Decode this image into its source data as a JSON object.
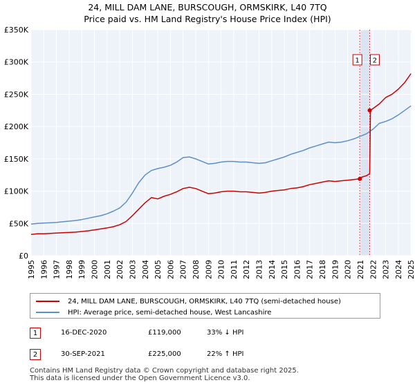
{
  "chart_data": {
    "type": "line",
    "title": "24, MILL DAM LANE, BURSCOUGH, ORMSKIRK, L40 7TQ",
    "subtitle": "Price paid vs. HM Land Registry's House Price Index (HPI)",
    "y_ticks": [
      {
        "value": 0,
        "label": "£0"
      },
      {
        "value": 50000,
        "label": "£50K"
      },
      {
        "value": 100000,
        "label": "£100K"
      },
      {
        "value": 150000,
        "label": "£150K"
      },
      {
        "value": 200000,
        "label": "£200K"
      },
      {
        "value": 250000,
        "label": "£250K"
      },
      {
        "value": 300000,
        "label": "£300K"
      },
      {
        "value": 350000,
        "label": "£350K"
      }
    ],
    "x_ticks": [
      "1995",
      "1996",
      "1997",
      "1998",
      "1999",
      "2000",
      "2001",
      "2002",
      "2003",
      "2004",
      "2005",
      "2006",
      "2007",
      "2008",
      "2009",
      "2010",
      "2011",
      "2012",
      "2013",
      "2014",
      "2015",
      "2016",
      "2017",
      "2018",
      "2019",
      "2020",
      "2021",
      "2022",
      "2023",
      "2024",
      "2025"
    ],
    "xlim": [
      1995,
      2025.1
    ],
    "ylim": [
      0,
      350000
    ],
    "grid": true,
    "series": [
      {
        "name": "24, MILL DAM LANE, BURSCOUGH, ORMSKIRK, L40 7TQ (semi-detached house)",
        "color": "#cc0000",
        "x": [
          1995.0,
          1995.5,
          1996.0,
          1996.5,
          1997.0,
          1997.5,
          1998.0,
          1998.5,
          1999.0,
          1999.5,
          2000.0,
          2000.5,
          2001.0,
          2001.5,
          2002.0,
          2002.5,
          2003.0,
          2003.5,
          2004.0,
          2004.5,
          2005.0,
          2005.5,
          2006.0,
          2006.5,
          2007.0,
          2007.5,
          2008.0,
          2008.5,
          2009.0,
          2009.5,
          2010.0,
          2010.5,
          2011.0,
          2011.5,
          2012.0,
          2012.5,
          2013.0,
          2013.5,
          2014.0,
          2014.5,
          2015.0,
          2015.5,
          2016.0,
          2016.5,
          2017.0,
          2017.5,
          2018.0,
          2018.5,
          2019.0,
          2019.5,
          2020.0,
          2020.5,
          2020.96,
          2021.0,
          2021.5,
          2021.74,
          2021.8,
          2022.0,
          2022.5,
          2023.0,
          2023.5,
          2024.0,
          2024.5,
          2025.0
        ],
        "values": [
          33000,
          34000,
          34000,
          34500,
          35000,
          35500,
          36000,
          36500,
          37500,
          38500,
          40000,
          41500,
          43000,
          45000,
          48000,
          53000,
          62000,
          72000,
          82000,
          90000,
          88000,
          92000,
          95000,
          99000,
          104000,
          106000,
          104000,
          100000,
          96000,
          97000,
          99000,
          100000,
          100000,
          99000,
          99000,
          98000,
          97000,
          98000,
          100000,
          101000,
          102000,
          104000,
          105000,
          107000,
          110000,
          112000,
          114000,
          116000,
          115000,
          116000,
          117000,
          118000,
          119000,
          121000,
          124000,
          127000,
          225000,
          228000,
          235000,
          245000,
          250000,
          258000,
          268000,
          282000
        ]
      },
      {
        "name": "HPI: Average price, semi-detached house, West Lancashire",
        "color": "#5b8fc9",
        "x": [
          1995.0,
          1995.5,
          1996.0,
          1996.5,
          1997.0,
          1997.5,
          1998.0,
          1998.5,
          1999.0,
          1999.5,
          2000.0,
          2000.5,
          2001.0,
          2001.5,
          2002.0,
          2002.5,
          2003.0,
          2003.5,
          2004.0,
          2004.5,
          2005.0,
          2005.5,
          2006.0,
          2006.5,
          2007.0,
          2007.5,
          2008.0,
          2008.5,
          2009.0,
          2009.5,
          2010.0,
          2010.5,
          2011.0,
          2011.5,
          2012.0,
          2012.5,
          2013.0,
          2013.5,
          2014.0,
          2014.5,
          2015.0,
          2015.5,
          2016.0,
          2016.5,
          2017.0,
          2017.5,
          2018.0,
          2018.5,
          2019.0,
          2019.5,
          2020.0,
          2020.5,
          2021.0,
          2021.5,
          2022.0,
          2022.5,
          2023.0,
          2023.5,
          2024.0,
          2024.5,
          2025.0
        ],
        "values": [
          49000,
          50000,
          50500,
          51000,
          51500,
          52500,
          53500,
          54500,
          56000,
          58000,
          60000,
          62000,
          65000,
          69000,
          74000,
          83000,
          97000,
          113000,
          125000,
          132000,
          135000,
          137000,
          140000,
          145000,
          152000,
          153000,
          150000,
          146000,
          142000,
          143000,
          145000,
          146000,
          146000,
          145000,
          145000,
          144000,
          143000,
          144000,
          147000,
          150000,
          153000,
          157000,
          160000,
          163000,
          167000,
          170000,
          173000,
          176000,
          175000,
          176000,
          178000,
          181000,
          185000,
          189000,
          196000,
          205000,
          208000,
          212000,
          218000,
          225000,
          232000
        ]
      }
    ],
    "annotations": [
      {
        "label": "1",
        "x": 2020.96
      },
      {
        "label": "2",
        "x": 2021.74
      }
    ]
  },
  "legend": {
    "property_label": "24, MILL DAM LANE, BURSCOUGH, ORMSKIRK, L40 7TQ (semi-detached house)",
    "hpi_label": "HPI: Average price, semi-detached house, West Lancashire"
  },
  "transactions": [
    {
      "num": "1",
      "date": "16-DEC-2020",
      "price": "£119,000",
      "hpi": "33% ↓ HPI"
    },
    {
      "num": "2",
      "date": "30-SEP-2021",
      "price": "£225,000",
      "hpi": "22% ↑ HPI"
    }
  ],
  "footer": {
    "line1": "Contains HM Land Registry data © Crown copyright and database right 2025.",
    "line2": "This data is licensed under the Open Government Licence v3.0."
  },
  "colors": {
    "property": "#cc0000",
    "hpi": "#5b8fc9",
    "plot_bg": "#eef2f9",
    "shade": "#dce4f2",
    "grid": "#ffffff"
  }
}
